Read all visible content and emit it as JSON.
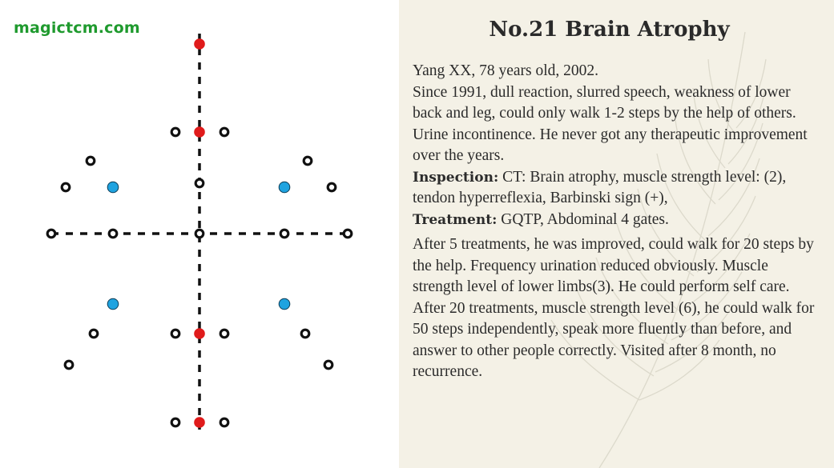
{
  "brand": "magictcm.com",
  "title": "No.21 Brain Atrophy",
  "paragraphs": {
    "p1": "Yang XX, 78 years old, 2002.",
    "p2": "Since 1991, dull reaction, slurred speech, weakness of lower back and leg, could only walk  1-2 steps by the help of others. Urine incontinence. He never got any therapeutic improvement over the years.",
    "inspection_label": "Inspection:",
    "inspection_text": " CT: Brain atrophy, muscle strength level: (2), tendon hyperreflexia, Barbinski sign (+),",
    "treatment_label": "Treatment:",
    "treatment_text": " GQTP, Abdominal 4 gates.",
    "p5": "After 5 treatments, he was improved, could walk for 20 steps by the help. Frequency urination reduced obviously. Muscle strength level of lower limbs(3). He could perform self care.",
    "p6": "After 20 treatments, muscle strength level (6), he could walk for 50 steps independently, speak more fluently than before, and answer to other people correctly. Visited after 8 month, no recurrence."
  },
  "colors": {
    "red_point": "#e01b1b",
    "blue_point": "#1fa3e0",
    "open_point": "#111111",
    "panel_bg": "#f4f1e6",
    "brand_green": "#1f9a2e"
  }
}
